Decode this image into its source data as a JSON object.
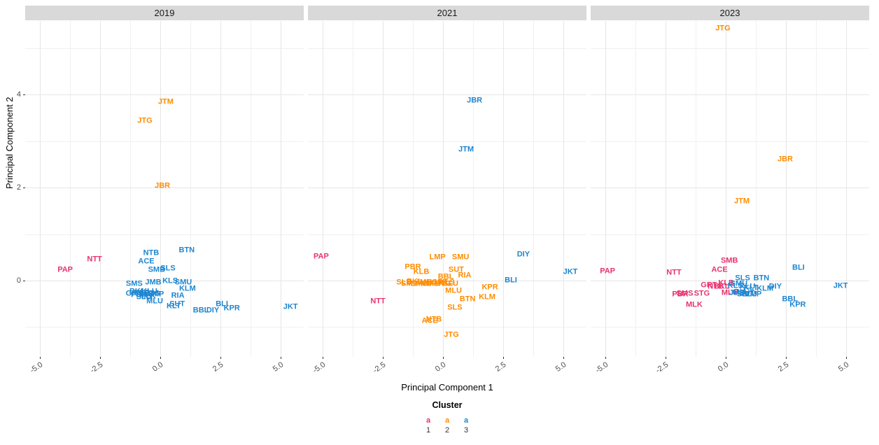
{
  "colors": {
    "cluster1": "#e8326e",
    "cluster2": "#ff8c00",
    "cluster3": "#1e86d0",
    "strip_bg": "#d9d9d9",
    "grid_major": "#e6e6e6",
    "grid_minor": "#f0f0f0",
    "tick_text": "#4d4d4d"
  },
  "chart_data": {
    "type": "scatter",
    "mode": "text-labels",
    "xlabel": "Principal Component 1",
    "ylabel": "Principal Component 2",
    "legend": {
      "title": "Cluster",
      "position": "bottom",
      "symbol": "a",
      "entries": [
        {
          "label": "1",
          "cluster": 1
        },
        {
          "label": "2",
          "cluster": 2
        },
        {
          "label": "3",
          "cluster": 3
        }
      ]
    },
    "axes": {
      "x": {
        "ticks": [
          -5,
          -2.5,
          0,
          2.5,
          5
        ],
        "tick_labels": [
          "-5.0",
          "-2.5",
          "0.0",
          "2.5",
          "5.0"
        ],
        "range": [
          -5.61,
          5.96
        ],
        "minor": [
          -3.75,
          -1.25,
          1.25,
          3.75
        ]
      },
      "y": {
        "ticks": [
          0,
          2,
          4
        ],
        "tick_labels": [
          "0",
          "2",
          "4"
        ],
        "range": [
          -1.64,
          5.59
        ],
        "minor": [
          -1,
          1,
          3,
          5
        ]
      }
    },
    "facets": [
      {
        "title": "2019",
        "points": [
          {
            "code": "PAP",
            "x": -3.95,
            "y": 0.23,
            "cluster": 1
          },
          {
            "code": "NTT",
            "x": -2.73,
            "y": 0.45,
            "cluster": 1
          },
          {
            "code": "JTG",
            "x": -0.64,
            "y": 3.43,
            "cluster": 2
          },
          {
            "code": "JTM",
            "x": 0.23,
            "y": 3.84,
            "cluster": 2
          },
          {
            "code": "JBR",
            "x": 0.09,
            "y": 2.03,
            "cluster": 2
          },
          {
            "code": "ACE",
            "x": -0.58,
            "y": 0.41,
            "cluster": 3
          },
          {
            "code": "NTB",
            "x": -0.38,
            "y": 0.59,
            "cluster": 3
          },
          {
            "code": "BTN",
            "x": 1.1,
            "y": 0.65,
            "cluster": 3
          },
          {
            "code": "SMB",
            "x": -0.15,
            "y": 0.23,
            "cluster": 3
          },
          {
            "code": "SLS",
            "x": 0.32,
            "y": 0.26,
            "cluster": 3
          },
          {
            "code": "SMS",
            "x": -1.08,
            "y": -0.08,
            "cluster": 3
          },
          {
            "code": "JMB",
            "x": -0.29,
            "y": -0.05,
            "cluster": 3
          },
          {
            "code": "KLS",
            "x": 0.41,
            "y": -0.02,
            "cluster": 3
          },
          {
            "code": "SMU",
            "x": 0.96,
            "y": -0.05,
            "cluster": 3
          },
          {
            "code": "BKL",
            "x": -0.95,
            "y": -0.24,
            "cluster": 3
          },
          {
            "code": "GRT",
            "x": -1.1,
            "y": -0.29,
            "cluster": 3
          },
          {
            "code": "KLB",
            "x": -0.75,
            "y": -0.27,
            "cluster": 3
          },
          {
            "code": "SLB",
            "x": -0.58,
            "y": -0.3,
            "cluster": 3
          },
          {
            "code": "KLU",
            "x": -0.45,
            "y": -0.24,
            "cluster": 3
          },
          {
            "code": "PBR",
            "x": -0.88,
            "y": -0.32,
            "cluster": 3
          },
          {
            "code": "MLK",
            "x": -0.52,
            "y": -0.34,
            "cluster": 3
          },
          {
            "code": "STG",
            "x": -0.33,
            "y": -0.28,
            "cluster": 3
          },
          {
            "code": "LMP",
            "x": -0.18,
            "y": -0.3,
            "cluster": 3
          },
          {
            "code": "SLU",
            "x": -0.68,
            "y": -0.36,
            "cluster": 3
          },
          {
            "code": "RIA",
            "x": 0.73,
            "y": -0.33,
            "cluster": 3
          },
          {
            "code": "KLM",
            "x": 1.13,
            "y": -0.18,
            "cluster": 3
          },
          {
            "code": "MLU",
            "x": -0.23,
            "y": -0.45,
            "cluster": 3
          },
          {
            "code": "SUT",
            "x": 0.7,
            "y": -0.51,
            "cluster": 3
          },
          {
            "code": "KLT",
            "x": 0.56,
            "y": -0.56,
            "cluster": 3
          },
          {
            "code": "BBL",
            "x": 1.69,
            "y": -0.65,
            "cluster": 3
          },
          {
            "code": "DIY",
            "x": 2.18,
            "y": -0.65,
            "cluster": 3
          },
          {
            "code": "BLI",
            "x": 2.56,
            "y": -0.51,
            "cluster": 3
          },
          {
            "code": "KPR",
            "x": 2.97,
            "y": -0.6,
            "cluster": 3
          },
          {
            "code": "JKT",
            "x": 5.41,
            "y": -0.57,
            "cluster": 3
          }
        ]
      },
      {
        "title": "2021",
        "points": [
          {
            "code": "PAP",
            "x": -5.06,
            "y": 0.51,
            "cluster": 1
          },
          {
            "code": "NTT",
            "x": -2.7,
            "y": -0.45,
            "cluster": 1
          },
          {
            "code": "JBR",
            "x": 1.31,
            "y": 3.87,
            "cluster": 3
          },
          {
            "code": "JTM",
            "x": 0.96,
            "y": 2.82,
            "cluster": 3
          },
          {
            "code": "DIY",
            "x": 3.34,
            "y": 0.56,
            "cluster": 3
          },
          {
            "code": "JKT",
            "x": 5.29,
            "y": 0.18,
            "cluster": 3
          },
          {
            "code": "BLI",
            "x": 2.82,
            "y": 0.0,
            "cluster": 3
          },
          {
            "code": "LMP",
            "x": -0.23,
            "y": 0.5,
            "cluster": 2
          },
          {
            "code": "SMU",
            "x": 0.73,
            "y": 0.5,
            "cluster": 2
          },
          {
            "code": "PBR",
            "x": -1.25,
            "y": 0.29,
            "cluster": 2
          },
          {
            "code": "KLB",
            "x": -0.9,
            "y": 0.18,
            "cluster": 2
          },
          {
            "code": "SUT",
            "x": 0.55,
            "y": 0.23,
            "cluster": 2
          },
          {
            "code": "RIA",
            "x": 0.9,
            "y": 0.11,
            "cluster": 2
          },
          {
            "code": "SLB",
            "x": -1.62,
            "y": -0.05,
            "cluster": 2
          },
          {
            "code": "SMS",
            "x": -1.4,
            "y": -0.08,
            "cluster": 2
          },
          {
            "code": "BKL",
            "x": -1.18,
            "y": -0.03,
            "cluster": 2
          },
          {
            "code": "SMB",
            "x": -0.98,
            "y": -0.07,
            "cluster": 2
          },
          {
            "code": "JMB",
            "x": -0.8,
            "y": -0.04,
            "cluster": 2
          },
          {
            "code": "KLT",
            "x": -0.62,
            "y": -0.08,
            "cluster": 2
          },
          {
            "code": "KLU",
            "x": -0.45,
            "y": -0.04,
            "cluster": 2
          },
          {
            "code": "MLK",
            "x": -0.3,
            "y": -0.08,
            "cluster": 2
          },
          {
            "code": "GRT",
            "x": -0.14,
            "y": -0.05,
            "cluster": 2
          },
          {
            "code": "STG",
            "x": 0.02,
            "y": -0.08,
            "cluster": 2
          },
          {
            "code": "KLS",
            "x": 0.17,
            "y": -0.04,
            "cluster": 2
          },
          {
            "code": "SLU",
            "x": 0.32,
            "y": -0.07,
            "cluster": 2
          },
          {
            "code": "BBL",
            "x": 0.12,
            "y": 0.08,
            "cluster": 2
          },
          {
            "code": "MLU",
            "x": 0.44,
            "y": -0.23,
            "cluster": 2
          },
          {
            "code": "KPR",
            "x": 1.95,
            "y": -0.15,
            "cluster": 2
          },
          {
            "code": "KLM",
            "x": 1.83,
            "y": -0.36,
            "cluster": 2
          },
          {
            "code": "BTN",
            "x": 1.02,
            "y": -0.41,
            "cluster": 2
          },
          {
            "code": "SLS",
            "x": 0.49,
            "y": -0.59,
            "cluster": 2
          },
          {
            "code": "ACE",
            "x": -0.55,
            "y": -0.87,
            "cluster": 2
          },
          {
            "code": "NTB",
            "x": -0.38,
            "y": -0.85,
            "cluster": 2
          },
          {
            "code": "JTG",
            "x": 0.35,
            "y": -1.17,
            "cluster": 2
          }
        ]
      },
      {
        "title": "2023",
        "points": [
          {
            "code": "JTG",
            "x": -0.12,
            "y": 5.42,
            "cluster": 2
          },
          {
            "code": "JBR",
            "x": 2.47,
            "y": 2.61,
            "cluster": 2
          },
          {
            "code": "JTM",
            "x": 0.67,
            "y": 1.7,
            "cluster": 2
          },
          {
            "code": "PAP",
            "x": -4.91,
            "y": 0.2,
            "cluster": 1
          },
          {
            "code": "NTT",
            "x": -2.15,
            "y": 0.17,
            "cluster": 1
          },
          {
            "code": "SMB",
            "x": 0.15,
            "y": 0.42,
            "cluster": 1
          },
          {
            "code": "ACE",
            "x": -0.26,
            "y": 0.23,
            "cluster": 1
          },
          {
            "code": "KLB",
            "x": 0.02,
            "y": -0.06,
            "cluster": 1
          },
          {
            "code": "NTB",
            "x": -0.42,
            "y": -0.13,
            "cluster": 1
          },
          {
            "code": "BKL",
            "x": -0.17,
            "y": -0.14,
            "cluster": 1
          },
          {
            "code": "GRT",
            "x": -0.7,
            "y": -0.11,
            "cluster": 1
          },
          {
            "code": "PBR",
            "x": -1.89,
            "y": -0.3,
            "cluster": 1
          },
          {
            "code": "SMS",
            "x": -1.7,
            "y": -0.29,
            "cluster": 1
          },
          {
            "code": "STG",
            "x": -0.99,
            "y": -0.29,
            "cluster": 1
          },
          {
            "code": "MLK",
            "x": -1.31,
            "y": -0.53,
            "cluster": 1
          },
          {
            "code": "MLU",
            "x": 0.17,
            "y": -0.27,
            "cluster": 1
          },
          {
            "code": "SLS",
            "x": 0.7,
            "y": 0.05,
            "cluster": 3
          },
          {
            "code": "BTN",
            "x": 1.48,
            "y": 0.05,
            "cluster": 3
          },
          {
            "code": "SMU",
            "x": 0.55,
            "y": -0.08,
            "cluster": 3
          },
          {
            "code": "KLS",
            "x": 0.4,
            "y": -0.12,
            "cluster": 3
          },
          {
            "code": "KLM",
            "x": 1.63,
            "y": -0.18,
            "cluster": 3
          },
          {
            "code": "DIY",
            "x": 2.06,
            "y": -0.14,
            "cluster": 3
          },
          {
            "code": "BLI",
            "x": 3.02,
            "y": 0.27,
            "cluster": 3
          },
          {
            "code": "JKT",
            "x": 4.77,
            "y": -0.12,
            "cluster": 3
          },
          {
            "code": "SUT",
            "x": 0.88,
            "y": -0.28,
            "cluster": 3
          },
          {
            "code": "SLT",
            "x": 0.75,
            "y": -0.3,
            "cluster": 3
          },
          {
            "code": "RIA",
            "x": 0.62,
            "y": -0.25,
            "cluster": 3
          },
          {
            "code": "JMB",
            "x": 0.48,
            "y": -0.27,
            "cluster": 3
          },
          {
            "code": "KLT",
            "x": 1.05,
            "y": -0.16,
            "cluster": 3
          },
          {
            "code": "KLU",
            "x": 0.9,
            "y": -0.14,
            "cluster": 3
          },
          {
            "code": "SLU",
            "x": 0.98,
            "y": -0.3,
            "cluster": 3
          },
          {
            "code": "LMP",
            "x": 1.15,
            "y": -0.3,
            "cluster": 3
          },
          {
            "code": "BBL",
            "x": 2.67,
            "y": -0.4,
            "cluster": 3
          },
          {
            "code": "KPR",
            "x": 2.99,
            "y": -0.52,
            "cluster": 3
          }
        ]
      }
    ]
  }
}
